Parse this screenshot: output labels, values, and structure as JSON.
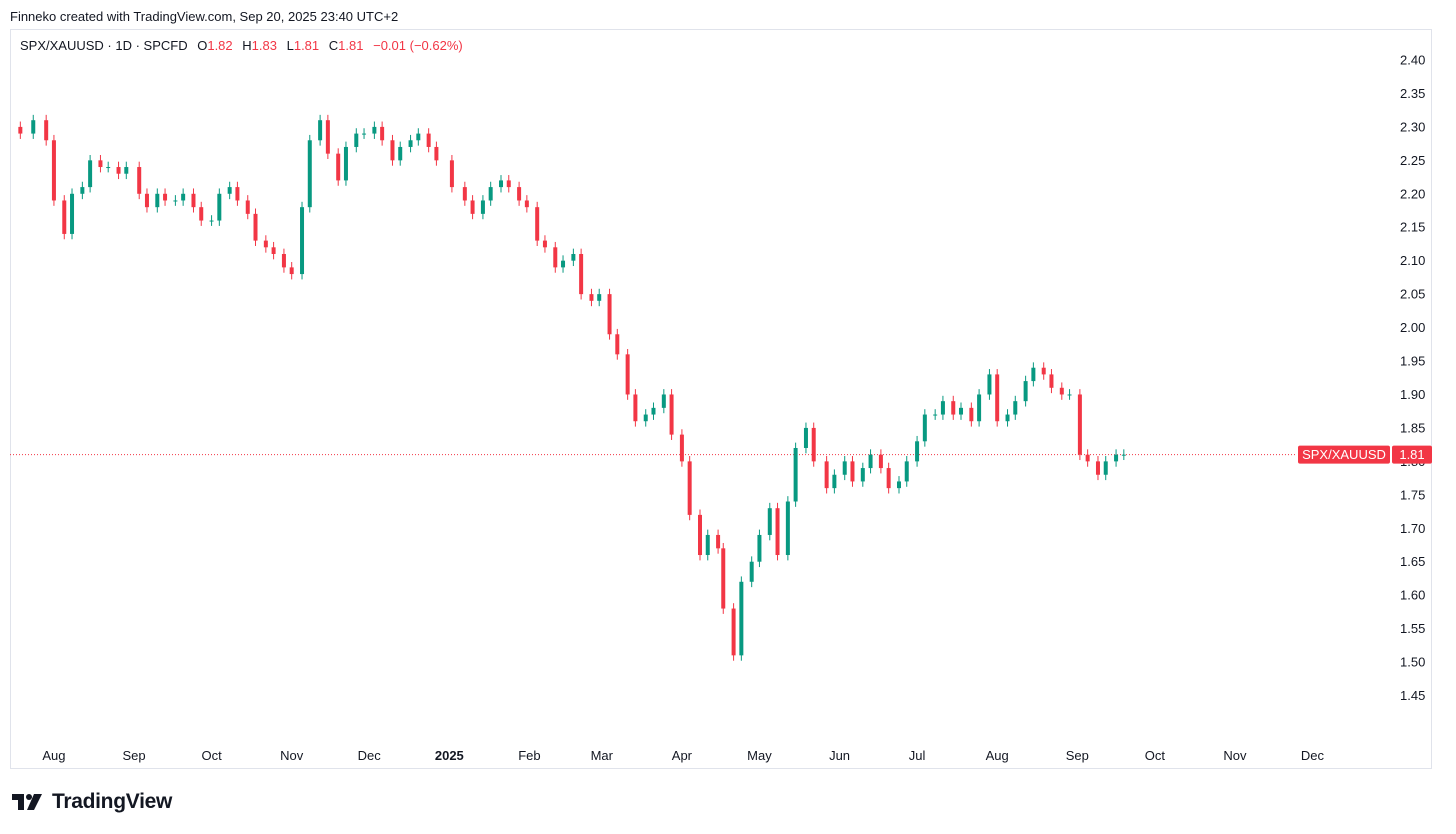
{
  "credit": "Finneko created with TradingView.com, Sep 20, 2025 23:40 UTC+2",
  "legend": {
    "symbol": "SPX/XAUUSD · 1D · SPCFD",
    "o_label": "O",
    "o_value": "1.82",
    "h_label": "H",
    "h_value": "1.83",
    "l_label": "L",
    "l_value": "1.81",
    "c_label": "C",
    "c_value": "1.81",
    "change": "−0.01 (−0.62%)"
  },
  "price_tag": {
    "symbol": "SPX/XAUUSD",
    "value": "1.81"
  },
  "footer": {
    "brand": "TradingView",
    "logo_icon": "tradingview-logo-icon"
  },
  "colors": {
    "up": "#089981",
    "down": "#f23645",
    "grid_border": "#e0e3eb",
    "last_price_line": "#f23645"
  },
  "chart_data": {
    "type": "candlestick",
    "ylim": [
      1.43,
      2.42
    ],
    "y_ticks": [
      "2.40",
      "2.35",
      "2.30",
      "2.25",
      "2.20",
      "2.15",
      "2.10",
      "2.05",
      "2.00",
      "1.95",
      "1.90",
      "1.85",
      "1.80",
      "1.75",
      "1.70",
      "1.65",
      "1.60",
      "1.55",
      "1.50",
      "1.45"
    ],
    "x_ticks": [
      {
        "label": "Aug",
        "date": "2024-08-01"
      },
      {
        "label": "Sep",
        "date": "2024-09-01"
      },
      {
        "label": "Oct",
        "date": "2024-10-01"
      },
      {
        "label": "Nov",
        "date": "2024-11-01"
      },
      {
        "label": "Dec",
        "date": "2024-12-01"
      },
      {
        "label": "2025",
        "date": "2025-01-01",
        "bold": true
      },
      {
        "label": "Feb",
        "date": "2025-02-01"
      },
      {
        "label": "Mar",
        "date": "2025-03-01"
      },
      {
        "label": "Apr",
        "date": "2025-04-01"
      },
      {
        "label": "May",
        "date": "2025-05-01"
      },
      {
        "label": "Jun",
        "date": "2025-06-01"
      },
      {
        "label": "Jul",
        "date": "2025-07-01"
      },
      {
        "label": "Aug",
        "date": "2025-08-01"
      },
      {
        "label": "Sep",
        "date": "2025-09-01"
      },
      {
        "label": "Oct",
        "date": "2025-10-01"
      },
      {
        "label": "Nov",
        "date": "2025-11-01"
      },
      {
        "label": "Dec",
        "date": "2025-12-01"
      }
    ],
    "last_price": 1.81,
    "series": [
      {
        "date": "2024-07-19",
        "close": 2.29
      },
      {
        "date": "2024-07-24",
        "close": 2.31
      },
      {
        "date": "2024-07-29",
        "close": 2.28
      },
      {
        "date": "2024-08-01",
        "close": 2.19
      },
      {
        "date": "2024-08-05",
        "close": 2.14
      },
      {
        "date": "2024-08-08",
        "close": 2.2
      },
      {
        "date": "2024-08-12",
        "close": 2.21
      },
      {
        "date": "2024-08-15",
        "close": 2.25
      },
      {
        "date": "2024-08-19",
        "close": 2.24
      },
      {
        "date": "2024-08-22",
        "close": 2.24
      },
      {
        "date": "2024-08-26",
        "close": 2.23
      },
      {
        "date": "2024-08-29",
        "close": 2.24
      },
      {
        "date": "2024-09-03",
        "close": 2.2
      },
      {
        "date": "2024-09-06",
        "close": 2.18
      },
      {
        "date": "2024-09-10",
        "close": 2.2
      },
      {
        "date": "2024-09-13",
        "close": 2.19
      },
      {
        "date": "2024-09-17",
        "close": 2.19
      },
      {
        "date": "2024-09-20",
        "close": 2.2
      },
      {
        "date": "2024-09-24",
        "close": 2.18
      },
      {
        "date": "2024-09-27",
        "close": 2.16
      },
      {
        "date": "2024-10-01",
        "close": 2.16
      },
      {
        "date": "2024-10-04",
        "close": 2.2
      },
      {
        "date": "2024-10-08",
        "close": 2.21
      },
      {
        "date": "2024-10-11",
        "close": 2.19
      },
      {
        "date": "2024-10-15",
        "close": 2.17
      },
      {
        "date": "2024-10-18",
        "close": 2.13
      },
      {
        "date": "2024-10-22",
        "close": 2.12
      },
      {
        "date": "2024-10-25",
        "close": 2.11
      },
      {
        "date": "2024-10-29",
        "close": 2.09
      },
      {
        "date": "2024-11-01",
        "close": 2.08
      },
      {
        "date": "2024-11-05",
        "close": 2.18
      },
      {
        "date": "2024-11-08",
        "close": 2.28
      },
      {
        "date": "2024-11-12",
        "close": 2.31
      },
      {
        "date": "2024-11-15",
        "close": 2.26
      },
      {
        "date": "2024-11-19",
        "close": 2.22
      },
      {
        "date": "2024-11-22",
        "close": 2.27
      },
      {
        "date": "2024-11-26",
        "close": 2.29
      },
      {
        "date": "2024-11-29",
        "close": 2.29
      },
      {
        "date": "2024-12-03",
        "close": 2.3
      },
      {
        "date": "2024-12-06",
        "close": 2.28
      },
      {
        "date": "2024-12-10",
        "close": 2.25
      },
      {
        "date": "2024-12-13",
        "close": 2.27
      },
      {
        "date": "2024-12-17",
        "close": 2.28
      },
      {
        "date": "2024-12-20",
        "close": 2.29
      },
      {
        "date": "2024-12-24",
        "close": 2.27
      },
      {
        "date": "2024-12-27",
        "close": 2.25
      },
      {
        "date": "2025-01-02",
        "close": 2.21
      },
      {
        "date": "2025-01-07",
        "close": 2.19
      },
      {
        "date": "2025-01-10",
        "close": 2.17
      },
      {
        "date": "2025-01-14",
        "close": 2.19
      },
      {
        "date": "2025-01-17",
        "close": 2.21
      },
      {
        "date": "2025-01-21",
        "close": 2.22
      },
      {
        "date": "2025-01-24",
        "close": 2.21
      },
      {
        "date": "2025-01-28",
        "close": 2.19
      },
      {
        "date": "2025-01-31",
        "close": 2.18
      },
      {
        "date": "2025-02-04",
        "close": 2.13
      },
      {
        "date": "2025-02-07",
        "close": 2.12
      },
      {
        "date": "2025-02-11",
        "close": 2.09
      },
      {
        "date": "2025-02-14",
        "close": 2.1
      },
      {
        "date": "2025-02-18",
        "close": 2.11
      },
      {
        "date": "2025-02-21",
        "close": 2.05
      },
      {
        "date": "2025-02-25",
        "close": 2.04
      },
      {
        "date": "2025-02-28",
        "close": 2.05
      },
      {
        "date": "2025-03-04",
        "close": 1.99
      },
      {
        "date": "2025-03-07",
        "close": 1.96
      },
      {
        "date": "2025-03-11",
        "close": 1.9
      },
      {
        "date": "2025-03-14",
        "close": 1.86
      },
      {
        "date": "2025-03-18",
        "close": 1.87
      },
      {
        "date": "2025-03-21",
        "close": 1.88
      },
      {
        "date": "2025-03-25",
        "close": 1.9
      },
      {
        "date": "2025-03-28",
        "close": 1.84
      },
      {
        "date": "2025-04-01",
        "close": 1.8
      },
      {
        "date": "2025-04-04",
        "close": 1.72
      },
      {
        "date": "2025-04-08",
        "close": 1.66
      },
      {
        "date": "2025-04-11",
        "close": 1.69
      },
      {
        "date": "2025-04-15",
        "close": 1.67
      },
      {
        "date": "2025-04-17",
        "close": 1.58
      },
      {
        "date": "2025-04-21",
        "close": 1.51
      },
      {
        "date": "2025-04-24",
        "close": 1.62
      },
      {
        "date": "2025-04-28",
        "close": 1.65
      },
      {
        "date": "2025-05-01",
        "close": 1.69
      },
      {
        "date": "2025-05-05",
        "close": 1.73
      },
      {
        "date": "2025-05-08",
        "close": 1.66
      },
      {
        "date": "2025-05-12",
        "close": 1.74
      },
      {
        "date": "2025-05-15",
        "close": 1.82
      },
      {
        "date": "2025-05-19",
        "close": 1.85
      },
      {
        "date": "2025-05-22",
        "close": 1.8
      },
      {
        "date": "2025-05-27",
        "close": 1.76
      },
      {
        "date": "2025-05-30",
        "close": 1.78
      },
      {
        "date": "2025-06-03",
        "close": 1.8
      },
      {
        "date": "2025-06-06",
        "close": 1.77
      },
      {
        "date": "2025-06-10",
        "close": 1.79
      },
      {
        "date": "2025-06-13",
        "close": 1.81
      },
      {
        "date": "2025-06-17",
        "close": 1.79
      },
      {
        "date": "2025-06-20",
        "close": 1.76
      },
      {
        "date": "2025-06-24",
        "close": 1.77
      },
      {
        "date": "2025-06-27",
        "close": 1.8
      },
      {
        "date": "2025-07-01",
        "close": 1.83
      },
      {
        "date": "2025-07-04",
        "close": 1.87
      },
      {
        "date": "2025-07-08",
        "close": 1.87
      },
      {
        "date": "2025-07-11",
        "close": 1.89
      },
      {
        "date": "2025-07-15",
        "close": 1.87
      },
      {
        "date": "2025-07-18",
        "close": 1.88
      },
      {
        "date": "2025-07-22",
        "close": 1.86
      },
      {
        "date": "2025-07-25",
        "close": 1.9
      },
      {
        "date": "2025-07-29",
        "close": 1.93
      },
      {
        "date": "2025-08-01",
        "close": 1.86
      },
      {
        "date": "2025-08-05",
        "close": 1.87
      },
      {
        "date": "2025-08-08",
        "close": 1.89
      },
      {
        "date": "2025-08-12",
        "close": 1.92
      },
      {
        "date": "2025-08-15",
        "close": 1.94
      },
      {
        "date": "2025-08-19",
        "close": 1.93
      },
      {
        "date": "2025-08-22",
        "close": 1.91
      },
      {
        "date": "2025-08-26",
        "close": 1.9
      },
      {
        "date": "2025-08-29",
        "close": 1.9
      },
      {
        "date": "2025-09-02",
        "close": 1.81
      },
      {
        "date": "2025-09-05",
        "close": 1.8
      },
      {
        "date": "2025-09-09",
        "close": 1.78
      },
      {
        "date": "2025-09-12",
        "close": 1.8
      },
      {
        "date": "2025-09-16",
        "close": 1.81
      },
      {
        "date": "2025-09-19",
        "close": 1.81
      }
    ]
  }
}
